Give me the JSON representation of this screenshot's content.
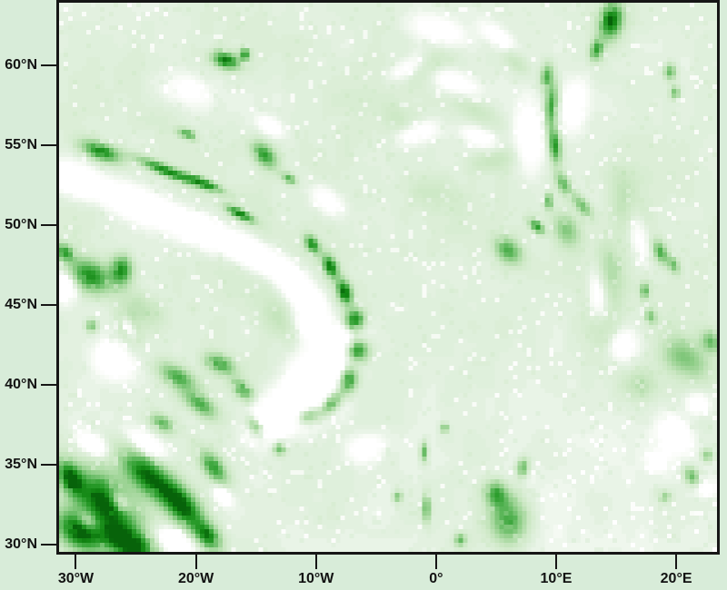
{
  "figure": {
    "background": "#d8ecd9",
    "frame_color": "#161616",
    "label_color": "#121212",
    "title": ""
  },
  "chart_data": {
    "type": "heatmap",
    "description": "Green-shaded gridded geophysical field over the North-East Atlantic and Europe; white patches = lowest values, dark green = highest values",
    "lon_range": [
      -31.4,
      23.4
    ],
    "lat_range": [
      29.55,
      63.92
    ],
    "grid": {
      "cols": 145,
      "rows": 121
    },
    "x_axis": {
      "ticks": [
        {
          "label": "30°W",
          "value": -30
        },
        {
          "label": "20°W",
          "value": -20
        },
        {
          "label": "10°W",
          "value": -10
        },
        {
          "label": "0°",
          "value": 0
        },
        {
          "label": "10°E",
          "value": 10
        },
        {
          "label": "20°E",
          "value": 20
        }
      ]
    },
    "y_axis": {
      "ticks": [
        {
          "label": "60°N",
          "value": 60
        },
        {
          "label": "55°N",
          "value": 55
        },
        {
          "label": "50°N",
          "value": 50
        },
        {
          "label": "45°N",
          "value": 45
        },
        {
          "label": "40°N",
          "value": 40
        },
        {
          "label": "35°N",
          "value": 35
        },
        {
          "label": "30°N",
          "value": 30
        }
      ]
    },
    "colormap": [
      [
        0.0,
        "#ffffff"
      ],
      [
        0.07,
        "#f5faf3"
      ],
      [
        0.14,
        "#e2f1df"
      ],
      [
        0.3,
        "#cae7c2"
      ],
      [
        0.5,
        "#97d18f"
      ],
      [
        0.66,
        "#5cb65a"
      ],
      [
        0.8,
        "#2d9e2e"
      ],
      [
        0.92,
        "#128613"
      ],
      [
        1.0,
        "#07630a"
      ]
    ],
    "base_value": 0.14,
    "noise_octaves": [
      [
        0.09,
        0.05
      ],
      [
        0.28,
        0.034
      ],
      [
        0.85,
        0.02
      ]
    ],
    "speckle": {
      "low_frac": 0.045,
      "low_delta": -0.1,
      "high_frac": 0.96,
      "high_delta": 0.04
    },
    "features": [
      [
        -27.5,
        32.5,
        3.0,
        1.6,
        -35,
        0.9
      ],
      [
        -29.8,
        30.8,
        2.0,
        1.1,
        -25,
        0.85
      ],
      [
        -24.0,
        34.3,
        2.6,
        1.1,
        -30,
        0.85
      ],
      [
        -21.0,
        32.3,
        2.0,
        1.0,
        -35,
        0.8
      ],
      [
        -25.5,
        30.0,
        2.2,
        0.9,
        -15,
        0.85
      ],
      [
        -18.5,
        34.8,
        1.4,
        0.7,
        -40,
        0.65
      ],
      [
        -30.5,
        34.2,
        1.2,
        0.8,
        -45,
        0.75
      ],
      [
        -19.0,
        30.5,
        1.2,
        0.7,
        -30,
        0.7
      ],
      [
        -21.5,
        40.5,
        1.6,
        0.65,
        -20,
        0.55
      ],
      [
        -18.0,
        41.3,
        1.2,
        0.55,
        -15,
        0.6
      ],
      [
        -19.7,
        38.8,
        1.5,
        0.6,
        -25,
        0.55
      ],
      [
        -16.1,
        39.7,
        0.9,
        0.5,
        -30,
        0.55
      ],
      [
        -22.8,
        37.6,
        1.0,
        0.5,
        -20,
        0.5
      ],
      [
        -15.0,
        37.4,
        0.8,
        0.45,
        -35,
        0.55
      ],
      [
        -13.0,
        36.0,
        0.5,
        0.4,
        0,
        0.5
      ],
      [
        -10.3,
        48.8,
        0.7,
        0.45,
        -40,
        0.7
      ],
      [
        -8.8,
        47.4,
        0.8,
        0.5,
        -50,
        0.8
      ],
      [
        -7.6,
        45.8,
        0.8,
        0.55,
        -60,
        0.85
      ],
      [
        -6.8,
        44.0,
        0.7,
        0.85,
        -80,
        0.85
      ],
      [
        -6.6,
        42.2,
        0.7,
        0.95,
        85,
        0.85
      ],
      [
        -7.3,
        40.3,
        0.8,
        0.7,
        60,
        0.8
      ],
      [
        -8.7,
        38.9,
        1.0,
        0.55,
        35,
        0.75
      ],
      [
        -10.6,
        38.1,
        1.0,
        0.5,
        10,
        0.55
      ],
      [
        -27.9,
        54.6,
        1.6,
        0.55,
        -15,
        0.75
      ],
      [
        -22.5,
        53.4,
        2.4,
        0.35,
        -18,
        0.75
      ],
      [
        -19.3,
        52.6,
        1.6,
        0.3,
        -18,
        0.7
      ],
      [
        -16.3,
        50.7,
        1.2,
        0.3,
        -20,
        0.75
      ],
      [
        -14.3,
        54.4,
        1.1,
        0.65,
        -30,
        0.65
      ],
      [
        -20.7,
        55.7,
        0.8,
        0.3,
        -15,
        0.55
      ],
      [
        -12.2,
        52.9,
        0.6,
        0.3,
        -20,
        0.55
      ],
      [
        -17.5,
        60.3,
        1.1,
        0.5,
        -10,
        0.8
      ],
      [
        -15.9,
        60.7,
        0.4,
        0.4,
        -45,
        0.65
      ],
      [
        -28.8,
        46.8,
        1.8,
        1.0,
        -15,
        0.75
      ],
      [
        -26.2,
        47.2,
        0.9,
        0.9,
        -70,
        0.7
      ],
      [
        -30.9,
        48.3,
        0.8,
        0.5,
        -20,
        0.6
      ],
      [
        -28.7,
        43.7,
        0.5,
        0.4,
        0,
        0.45
      ],
      [
        -25.6,
        43.6,
        1.3,
        0.8,
        -50,
        0.3
      ],
      [
        6.0,
        48.4,
        1.2,
        0.75,
        -25,
        0.55
      ],
      [
        8.4,
        49.9,
        0.7,
        0.35,
        -30,
        0.65
      ],
      [
        10.9,
        49.7,
        1.2,
        0.9,
        -40,
        0.4
      ],
      [
        9.4,
        51.5,
        0.35,
        0.5,
        0,
        0.6
      ],
      [
        9.6,
        57.5,
        0.55,
        1.4,
        -8,
        0.65
      ],
      [
        9.9,
        55.0,
        0.5,
        1.1,
        8,
        0.7
      ],
      [
        9.2,
        59.3,
        0.5,
        0.8,
        -15,
        0.55
      ],
      [
        10.6,
        52.6,
        0.8,
        0.5,
        -50,
        0.5
      ],
      [
        12.2,
        51.2,
        1.0,
        0.45,
        -40,
        0.45
      ],
      [
        14.6,
        62.8,
        0.9,
        1.1,
        -20,
        0.85
      ],
      [
        13.4,
        61.0,
        0.5,
        0.7,
        -30,
        0.6
      ],
      [
        19.5,
        59.6,
        0.5,
        0.5,
        0,
        0.5
      ],
      [
        19.9,
        58.3,
        0.4,
        0.4,
        0,
        0.45
      ],
      [
        18.7,
        48.3,
        0.8,
        0.5,
        -55,
        0.55
      ],
      [
        19.8,
        47.5,
        0.6,
        0.4,
        -55,
        0.45
      ],
      [
        17.4,
        45.9,
        0.4,
        0.5,
        0,
        0.5
      ],
      [
        17.9,
        44.3,
        0.5,
        0.4,
        -45,
        0.4
      ],
      [
        20.8,
        41.6,
        2.0,
        1.1,
        -20,
        0.4
      ],
      [
        22.9,
        42.7,
        0.8,
        0.6,
        -30,
        0.45
      ],
      [
        21.3,
        34.3,
        0.7,
        0.5,
        -30,
        0.5
      ],
      [
        22.6,
        35.6,
        0.5,
        0.4,
        0,
        0.4
      ],
      [
        19.0,
        33.0,
        0.5,
        0.35,
        0,
        0.35
      ],
      [
        6.0,
        31.5,
        1.6,
        1.5,
        -10,
        0.62
      ],
      [
        5.0,
        33.2,
        1.0,
        0.8,
        -20,
        0.55
      ],
      [
        7.2,
        34.8,
        0.45,
        0.6,
        -20,
        0.5
      ],
      [
        -1.0,
        35.8,
        0.3,
        0.6,
        0,
        0.55
      ],
      [
        -0.8,
        32.3,
        0.3,
        0.9,
        0,
        0.55
      ],
      [
        -3.2,
        33.0,
        0.4,
        0.35,
        0,
        0.45
      ],
      [
        0.7,
        37.3,
        0.35,
        0.3,
        0,
        0.45
      ],
      [
        2.0,
        30.3,
        0.5,
        0.4,
        0,
        0.45
      ],
      [
        15.8,
        51.5,
        1.2,
        2.2,
        20,
        0.2
      ],
      [
        14.6,
        47.0,
        1.0,
        2.2,
        12,
        0.2
      ],
      [
        14.0,
        43.5,
        1.2,
        1.5,
        10,
        0.18
      ],
      [
        3.0,
        57.5,
        2.5,
        0.8,
        -25,
        0.18
      ],
      [
        6.5,
        60.5,
        1.5,
        0.7,
        -35,
        0.22
      ],
      [
        -0.5,
        60.0,
        2.0,
        0.8,
        15,
        0.15
      ],
      [
        4.5,
        54.0,
        2.0,
        0.7,
        10,
        0.15
      ],
      [
        0.0,
        52.0,
        2.5,
        1.0,
        -10,
        0.12
      ],
      [
        -3.0,
        56.5,
        1.5,
        0.8,
        -20,
        0.12
      ],
      [
        -24.5,
        44.8,
        2.0,
        1.0,
        -25,
        0.2
      ],
      [
        -13.0,
        44.0,
        1.5,
        1.0,
        -30,
        0.15
      ],
      [
        17.0,
        40.0,
        1.5,
        1.0,
        0,
        0.2
      ],
      [
        21.0,
        37.8,
        2.2,
        2.0,
        0,
        0.15
      ],
      [
        -30.0,
        52.8,
        2.2,
        0.9,
        -12,
        -0.42
      ],
      [
        -25.0,
        51.3,
        2.5,
        0.9,
        -16,
        -0.46
      ],
      [
        -20.0,
        49.8,
        2.5,
        0.9,
        -18,
        -0.46
      ],
      [
        -15.5,
        48.3,
        2.2,
        0.9,
        -22,
        -0.46
      ],
      [
        -12.0,
        46.5,
        1.8,
        1.0,
        -35,
        -0.46
      ],
      [
        -10.3,
        44.3,
        1.4,
        1.3,
        -70,
        -0.46
      ],
      [
        -10.0,
        40.0,
        2.6,
        2.0,
        25,
        -0.55
      ],
      [
        -13.5,
        38.0,
        2.0,
        1.3,
        15,
        -0.46
      ],
      [
        -7.5,
        42.8,
        1.2,
        1.5,
        -70,
        -0.4
      ],
      [
        -26.3,
        32.7,
        0.9,
        0.5,
        -30,
        -0.5
      ],
      [
        -29.0,
        31.5,
        0.8,
        0.5,
        -20,
        -0.42
      ],
      [
        -21.8,
        30.2,
        1.4,
        0.7,
        -15,
        -0.48
      ],
      [
        -24.0,
        36.2,
        1.6,
        0.6,
        -25,
        -0.42
      ],
      [
        -28.5,
        36.2,
        1.2,
        0.6,
        -20,
        -0.38
      ],
      [
        -17.8,
        33.1,
        0.8,
        0.5,
        -30,
        -0.38
      ],
      [
        -31.0,
        46.2,
        1.0,
        0.8,
        -10,
        -0.5
      ],
      [
        -27.0,
        41.5,
        1.5,
        1.0,
        -20,
        -0.32
      ],
      [
        -25.6,
        43.6,
        0.8,
        0.4,
        -50,
        -0.45
      ],
      [
        1.5,
        58.8,
        2.2,
        0.8,
        -20,
        -0.28
      ],
      [
        5.5,
        61.5,
        1.8,
        0.6,
        -30,
        -0.28
      ],
      [
        -1.5,
        55.8,
        1.8,
        0.7,
        10,
        -0.26
      ],
      [
        3.5,
        55.5,
        1.5,
        0.6,
        -15,
        -0.22
      ],
      [
        7.8,
        55.5,
        1.2,
        2.0,
        5,
        -0.28
      ],
      [
        11.5,
        57.5,
        1.0,
        1.5,
        -10,
        -0.28
      ],
      [
        0.2,
        62.2,
        2.0,
        0.8,
        -10,
        -0.26
      ],
      [
        16.8,
        49.5,
        0.8,
        2.0,
        18,
        -0.26
      ],
      [
        13.5,
        45.5,
        0.8,
        1.8,
        12,
        -0.26
      ],
      [
        15.5,
        42.5,
        1.2,
        1.0,
        0,
        -0.26
      ],
      [
        20.0,
        37.0,
        1.6,
        1.2,
        -20,
        -0.38
      ],
      [
        21.8,
        38.8,
        1.0,
        0.7,
        0,
        -0.32
      ],
      [
        18.5,
        35.2,
        0.8,
        0.6,
        0,
        -0.28
      ],
      [
        22.5,
        33.5,
        0.8,
        0.5,
        0,
        -0.26
      ],
      [
        -6.0,
        36.0,
        1.5,
        0.8,
        10,
        -0.25
      ],
      [
        -13.8,
        56.2,
        1.0,
        0.5,
        -20,
        -0.28
      ],
      [
        -2.5,
        59.8,
        1.5,
        0.6,
        20,
        -0.22
      ],
      [
        -21.0,
        58.5,
        2.0,
        1.0,
        -10,
        -0.2
      ],
      [
        -9.0,
        51.5,
        1.5,
        0.8,
        -25,
        -0.25
      ]
    ]
  }
}
